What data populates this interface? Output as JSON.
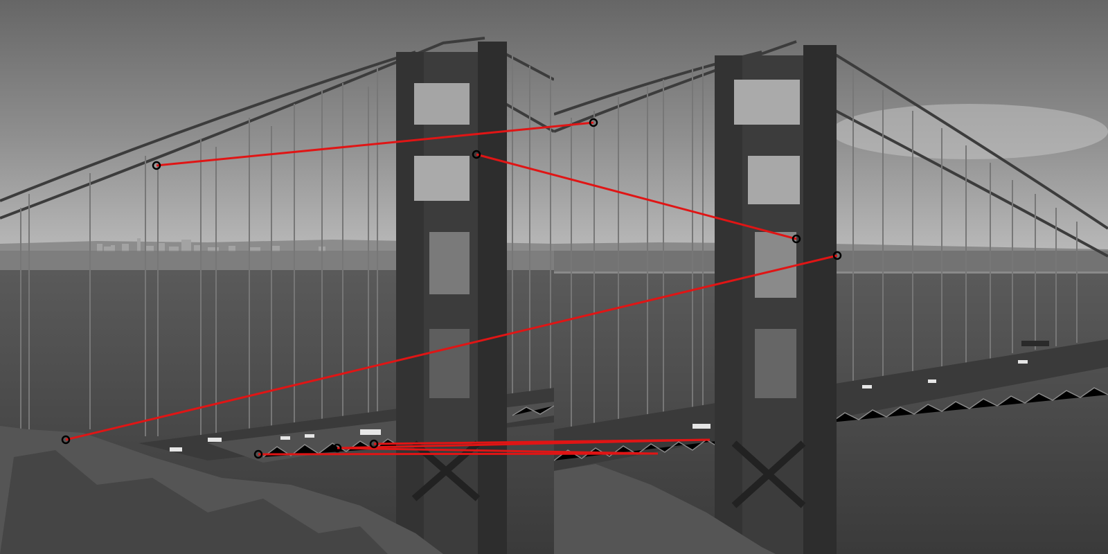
{
  "scene": {
    "description_free": true,
    "panels": [
      {
        "id": "left-photo",
        "subject": "bridge-tower-view-a"
      },
      {
        "id": "right-photo",
        "subject": "bridge-tower-view-b"
      }
    ],
    "colors": {
      "sky_top": "#6e6e6e",
      "sky_bottom": "#b5b5b5",
      "water": "#4a4a4a",
      "tower": "#3a3a3a",
      "tower_shadow": "#1f1f1f",
      "rock": "#585858",
      "city": "#9a9a9a",
      "match_line": "#e01515",
      "keypoint_ring": "#000000"
    },
    "match_count": 7
  }
}
